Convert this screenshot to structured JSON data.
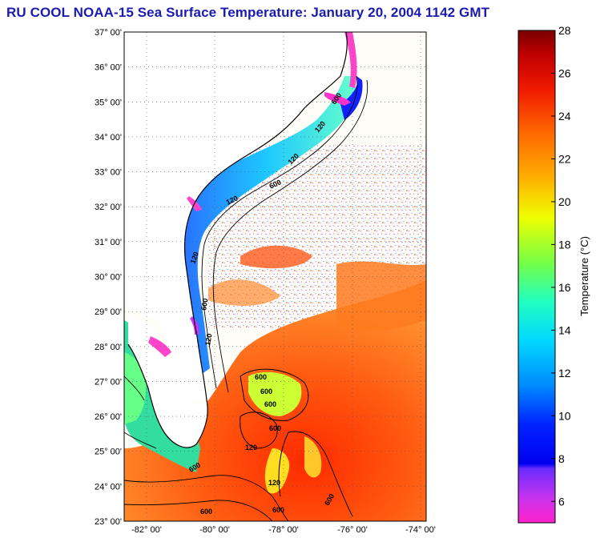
{
  "title": "RU COOL  NOAA-15  Sea Surface Temperature:  January 20, 2004 1142 GMT",
  "latitude_labels": [
    "37° 00'",
    "36° 00'",
    "35° 00'",
    "34° 00'",
    "33° 00'",
    "32° 00'",
    "31° 00'",
    "30° 00'",
    "29° 00'",
    "28° 00'",
    "27° 00'",
    "26° 00'",
    "25° 00'",
    "24° 00'",
    "23° 00'"
  ],
  "longitude_labels": [
    "-82° 00'",
    "-80° 00'",
    "-78° 00'",
    "-76° 00'",
    "-74° 00'"
  ],
  "isobath_labels": [
    "600",
    "120",
    "120",
    "600",
    "120",
    "120",
    "600",
    "120",
    "600",
    "600",
    "600",
    "600",
    "120",
    "600",
    "600",
    "120",
    "600",
    "600"
  ],
  "colorbar": {
    "title": "Temperature (°C)",
    "ticks": [
      "28",
      "26",
      "24",
      "22",
      "20",
      "18",
      "16",
      "14",
      "12",
      "10",
      "8",
      "6"
    ],
    "min": 5,
    "max": 28
  },
  "colors": {
    "title": "#1b1bb0",
    "land": "#ffffff",
    "grid": "#555555"
  },
  "icons": [
    "map-frame",
    "colorbar"
  ]
}
